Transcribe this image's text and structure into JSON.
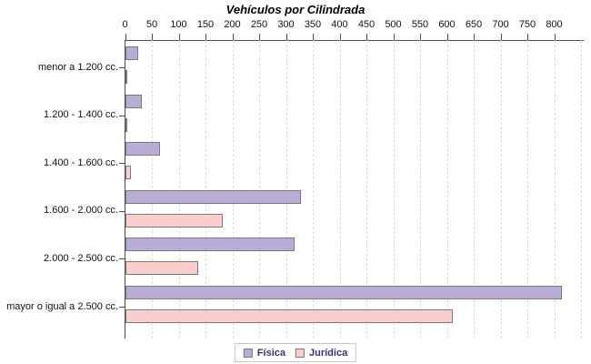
{
  "chart_data": {
    "type": "bar",
    "orientation": "horizontal",
    "title": "Vehículos por Cilindrada",
    "categories": [
      "menor a 1.200 cc.",
      "1.200 - 1.400 cc.",
      "1.400 - 1.600 cc.",
      "1.600 - 2.000 cc.",
      "2.000 - 2.500 cc.",
      "mayor o igual a 2.500 cc."
    ],
    "series": [
      {
        "name": "Física",
        "color": "#b9add8",
        "values": [
          23,
          30,
          64,
          327,
          316,
          813
        ]
      },
      {
        "name": "Jurídica",
        "color": "#fbcdcd",
        "values": [
          0,
          0,
          10,
          181,
          135,
          610
        ]
      }
    ],
    "x_ticks": [
      0,
      50,
      100,
      150,
      200,
      250,
      300,
      350,
      400,
      450,
      500,
      550,
      600,
      650,
      700,
      750,
      800
    ],
    "xlim": [
      0,
      850
    ],
    "grid": "vertical-dashed",
    "legend_position": "bottom-center",
    "axis_color": "#4d4d4d",
    "gridline_color": "#dbdbdb",
    "bar_border_color": "#7a7a7a",
    "legend_text_color": "#3d2f7f"
  }
}
